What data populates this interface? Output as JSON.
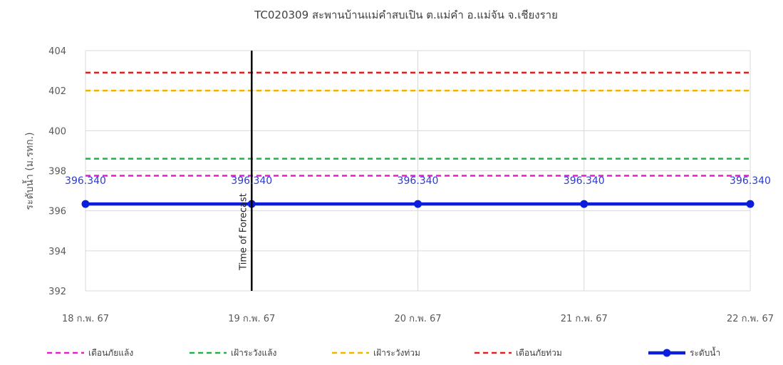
{
  "chart_data": {
    "type": "line",
    "title": "TC020309 สะพานบ้านแม่คำสบเปิน ต.แม่คำ อ.แม่จัน จ.เชียงราย",
    "ylabel": "ระดับน้ำ (ม.รทก.)",
    "ylim": [
      392,
      404
    ],
    "yticks": [
      392,
      394,
      396,
      398,
      400,
      402,
      404
    ],
    "ytick_labels": [
      "392",
      "394",
      "396",
      "398",
      "400",
      "402",
      "404"
    ],
    "categories": [
      "18 ก.พ. 67",
      "19 ก.พ. 67",
      "20 ก.พ. 67",
      "21 ก.พ. 67",
      "22 ก.พ. 67"
    ],
    "grid": true,
    "legend_position": "bottom",
    "series": [
      {
        "name": "เตือนภัยแล้ง",
        "style": "dashed",
        "color": "#e020c8",
        "values": [
          397.75,
          397.75,
          397.75,
          397.75,
          397.75
        ]
      },
      {
        "name": "เฝ้าระวังแล้ง",
        "style": "dashed",
        "color": "#22b04a",
        "values": [
          398.6,
          398.6,
          398.6,
          398.6,
          398.6
        ]
      },
      {
        "name": "เฝ้าระวังท่วม",
        "style": "dashed",
        "color": "#f0b400",
        "values": [
          402.0,
          402.0,
          402.0,
          402.0,
          402.0
        ]
      },
      {
        "name": "เตือนภัยท่วม",
        "style": "dashed",
        "color": "#e02020",
        "values": [
          402.9,
          402.9,
          402.9,
          402.9,
          402.9
        ]
      },
      {
        "name": "ระดับน้ำ",
        "style": "solid-markers",
        "color": "#0a1edc",
        "values": [
          396.34,
          396.34,
          396.34,
          396.34,
          396.34
        ],
        "data_labels": [
          "396.340",
          "396.340",
          "396.340",
          "396.340",
          "396.340"
        ]
      }
    ],
    "forecast_marker": {
      "x_category": "19 ก.พ. 67",
      "label": "Time of Forecast",
      "color": "#000000"
    }
  }
}
